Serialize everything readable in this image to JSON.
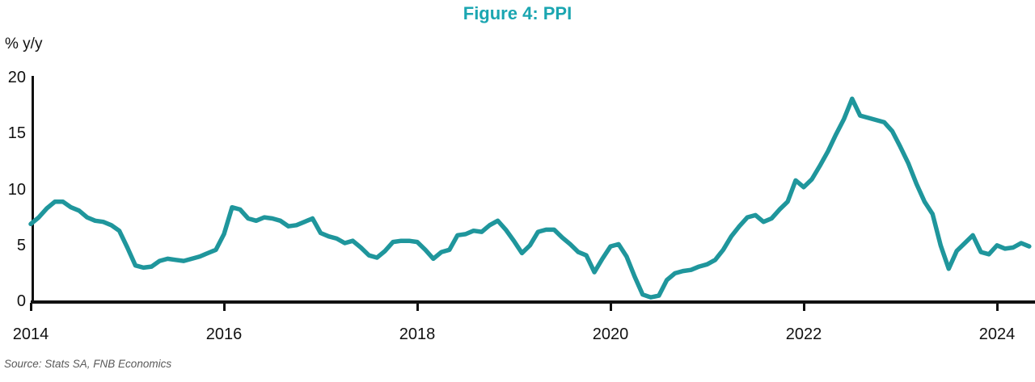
{
  "figure": {
    "title": "Figure 4: PPI",
    "y_axis_unit": "% y/y",
    "source": "Source: Stats SA, FNB Economics"
  },
  "colors": {
    "line_teal": "#1F969C",
    "title_teal": "#1BA6B1",
    "axis_black": "#111111",
    "source_gray": "#595959"
  },
  "chart_data": {
    "type": "line",
    "title": "Figure 4: PPI",
    "xlabel": "",
    "ylabel": "% y/y",
    "frequency": "monthly",
    "x_start": "2014-01",
    "x_end": "2024-05",
    "x_tick_labels": [
      "2014",
      "2016",
      "2018",
      "2020",
      "2022",
      "2024"
    ],
    "y_tick_labels": [
      "20",
      "15",
      "10",
      "5",
      "0"
    ],
    "y_tick_values": [
      20,
      15,
      10,
      5,
      0
    ],
    "ylim": [
      0,
      20
    ],
    "grid": false,
    "legend_position": "none",
    "series": [
      {
        "name": "PPI % y/y",
        "values": [
          6.9,
          7.5,
          8.3,
          8.9,
          8.9,
          8.4,
          8.1,
          7.5,
          7.2,
          7.1,
          6.8,
          6.3,
          4.8,
          3.2,
          3.0,
          3.1,
          3.6,
          3.8,
          3.7,
          3.6,
          3.8,
          4.0,
          4.3,
          4.6,
          6.0,
          8.4,
          8.2,
          7.4,
          7.2,
          7.5,
          7.4,
          7.2,
          6.7,
          6.8,
          7.1,
          7.4,
          6.1,
          5.8,
          5.6,
          5.2,
          5.4,
          4.8,
          4.1,
          3.9,
          4.5,
          5.3,
          5.4,
          5.4,
          5.3,
          4.6,
          3.8,
          4.4,
          4.6,
          5.9,
          6.0,
          6.3,
          6.2,
          6.8,
          7.2,
          6.4,
          5.4,
          4.3,
          5.0,
          6.2,
          6.4,
          6.4,
          5.7,
          5.1,
          4.4,
          4.1,
          2.6,
          3.8,
          4.9,
          5.1,
          4.0,
          2.2,
          0.6,
          0.35,
          0.5,
          1.9,
          2.5,
          2.7,
          2.8,
          3.1,
          3.3,
          3.7,
          4.6,
          5.8,
          6.7,
          7.5,
          7.7,
          7.1,
          7.4,
          8.2,
          8.9,
          10.8,
          10.2,
          10.9,
          12.1,
          13.4,
          14.9,
          16.3,
          18.1,
          16.6,
          16.4,
          16.2,
          16.0,
          15.2,
          13.8,
          12.3,
          10.5,
          8.9,
          7.8,
          5.0,
          2.9,
          4.5,
          5.2,
          5.9,
          4.4,
          4.2,
          5.0,
          4.7,
          4.8,
          5.2,
          4.9
        ]
      }
    ]
  }
}
